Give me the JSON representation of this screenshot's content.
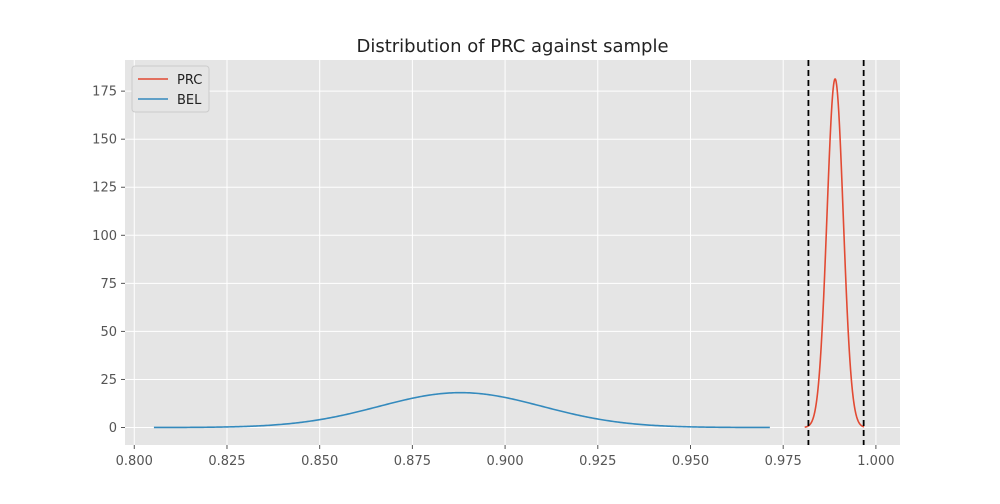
{
  "chart_data": {
    "type": "line",
    "title": "Distribution of PRC against sample",
    "xlabel": "",
    "ylabel": "",
    "xlim": [
      0.7975,
      1.0065
    ],
    "ylim": [
      -9.1,
      191.2
    ],
    "x_ticks": [
      "0.800",
      "0.825",
      "0.850",
      "0.875",
      "0.900",
      "0.925",
      "0.950",
      "0.975",
      "1.000"
    ],
    "y_ticks": [
      "0",
      "25",
      "50",
      "75",
      "100",
      "125",
      "150",
      "175"
    ],
    "grid": true,
    "legend_position": "top-left",
    "series": [
      {
        "name": "PRC",
        "color": "#E24A33",
        "distribution": {
          "kind": "normal-pdf",
          "mean": 0.989,
          "sd": 0.0022,
          "x_min": 0.9808,
          "x_max": 0.9968
        }
      },
      {
        "name": "BEL",
        "color": "#348ABD",
        "distribution": {
          "kind": "normal-pdf",
          "mean": 0.888,
          "sd": 0.022,
          "x_min": 0.8053,
          "x_max": 0.9714
        }
      }
    ],
    "reference_lines": [
      {
        "axis": "x",
        "value": 0.9818,
        "color": "#000000",
        "style": "dashed"
      },
      {
        "axis": "x",
        "value": 0.9967,
        "color": "#000000",
        "style": "dashed"
      }
    ],
    "background_color": "#E5E5E5",
    "grid_color": "#FFFFFF"
  }
}
